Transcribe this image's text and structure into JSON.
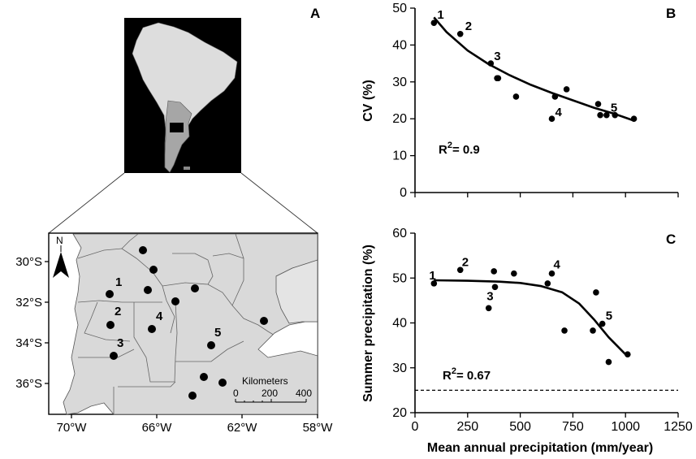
{
  "panel_a": {
    "letter": "A",
    "lat_labels": [
      "30°S",
      "32°S",
      "34°S",
      "36°S"
    ],
    "lon_labels": [
      "70°W",
      "66°W",
      "62°W",
      "58°W"
    ],
    "north_label": "N",
    "scale_title": "Kilometers",
    "scale_ticks": [
      "0",
      "200",
      "400"
    ],
    "numbered_sites": [
      "1",
      "2",
      "3",
      "4",
      "5"
    ]
  },
  "chart_data": [
    {
      "type": "scatter",
      "panel": "B",
      "title": "",
      "xlabel": "",
      "ylabel": "CV (%)",
      "xlim": [
        0,
        1250
      ],
      "ylim": [
        0,
        50
      ],
      "y_ticks": [
        0,
        10,
        20,
        30,
        40,
        50
      ],
      "r2_label": "R",
      "r2_value": "= 0.9",
      "points": [
        [
          90,
          46
        ],
        [
          215,
          43
        ],
        [
          360,
          35
        ],
        [
          390,
          31
        ],
        [
          395,
          31
        ],
        [
          480,
          26
        ],
        [
          650,
          20
        ],
        [
          665,
          26
        ],
        [
          720,
          28
        ],
        [
          870,
          24
        ],
        [
          880,
          21
        ],
        [
          910,
          21
        ],
        [
          950,
          21
        ],
        [
          1040,
          20
        ]
      ],
      "labeled_points": [
        {
          "label": "1",
          "x": 90,
          "y": 46
        },
        {
          "label": "2",
          "x": 215,
          "y": 43
        },
        {
          "label": "3",
          "x": 360,
          "y": 35
        },
        {
          "label": "4",
          "x": 650,
          "y": 20
        },
        {
          "label": "5",
          "x": 910,
          "y": 21
        }
      ],
      "fit_curve": [
        [
          90,
          47.5
        ],
        [
          150,
          43.5
        ],
        [
          250,
          38.5
        ],
        [
          350,
          34.8
        ],
        [
          450,
          31.8
        ],
        [
          550,
          29.2
        ],
        [
          650,
          27.0
        ],
        [
          750,
          25.0
        ],
        [
          850,
          23.0
        ],
        [
          950,
          21.3
        ],
        [
          1040,
          19.5
        ]
      ]
    },
    {
      "type": "scatter",
      "panel": "C",
      "title": "",
      "xlabel": "Mean annual precipitation (mm/year)",
      "ylabel": "Summer precipitation (%)",
      "xlim": [
        0,
        1250
      ],
      "ylim": [
        20,
        60
      ],
      "x_ticks": [
        0,
        250,
        500,
        750,
        1000,
        1250
      ],
      "y_ticks": [
        20,
        30,
        40,
        50,
        60
      ],
      "r2_label": "R",
      "r2_value": "= 0.67",
      "reference_line_y": 25,
      "points": [
        [
          90,
          48.8
        ],
        [
          215,
          51.8
        ],
        [
          350,
          43.3
        ],
        [
          375,
          51.5
        ],
        [
          380,
          48.0
        ],
        [
          470,
          51.0
        ],
        [
          630,
          48.8
        ],
        [
          650,
          51.0
        ],
        [
          710,
          38.3
        ],
        [
          845,
          38.3
        ],
        [
          860,
          46.8
        ],
        [
          890,
          39.8
        ],
        [
          920,
          31.3
        ],
        [
          1010,
          33.0
        ]
      ],
      "labeled_points": [
        {
          "label": "1",
          "x": 90,
          "y": 48.8
        },
        {
          "label": "2",
          "x": 215,
          "y": 51.8
        },
        {
          "label": "3",
          "x": 375,
          "y": 48.0
        },
        {
          "label": "4",
          "x": 650,
          "y": 51.0
        },
        {
          "label": "5",
          "x": 890,
          "y": 39.8
        }
      ],
      "fit_curve": [
        [
          90,
          49.5
        ],
        [
          250,
          49.4
        ],
        [
          400,
          49.2
        ],
        [
          500,
          48.9
        ],
        [
          600,
          48.2
        ],
        [
          700,
          46.8
        ],
        [
          780,
          44.3
        ],
        [
          850,
          40.8
        ],
        [
          920,
          36.8
        ],
        [
          1000,
          33.0
        ]
      ]
    }
  ]
}
